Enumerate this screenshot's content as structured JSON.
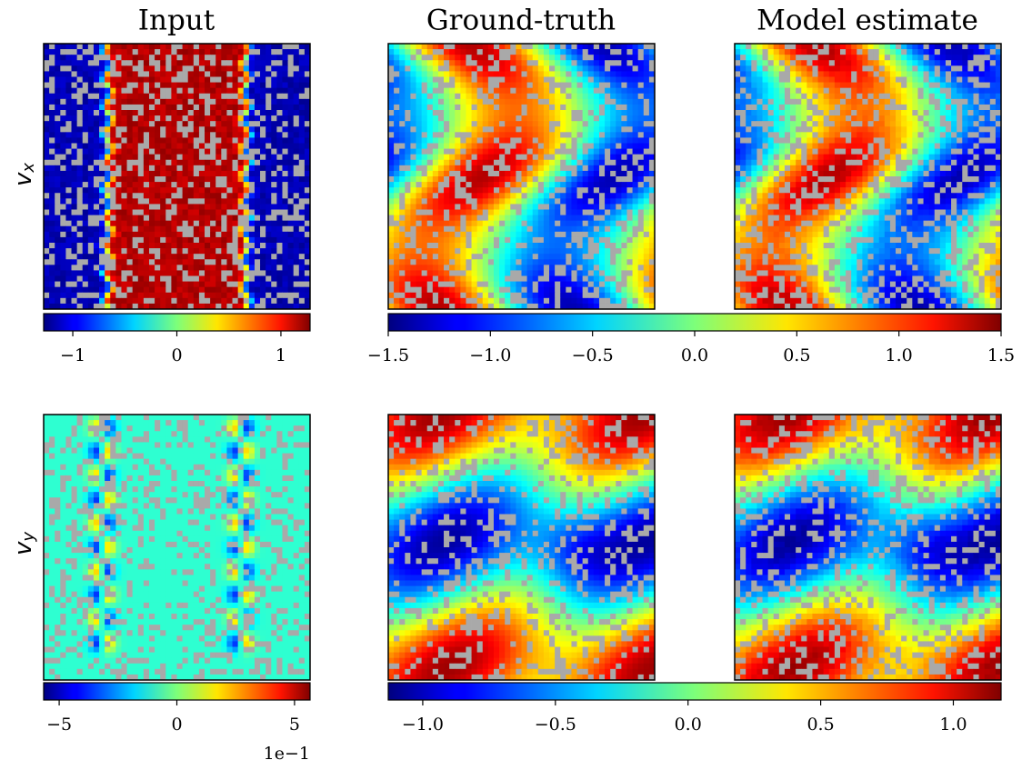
{
  "columns": [
    "Input",
    "Ground-truth",
    "Model estimate"
  ],
  "rows": [
    {
      "symbol": "v",
      "subscript": "x"
    },
    {
      "symbol": "v",
      "subscript": "y"
    }
  ],
  "chart_data": [
    {
      "type": "heatmap",
      "colormap": "jet",
      "clim": [
        -1.28,
        1.28
      ],
      "cticks": [
        {
          "value": -1,
          "label": "−1"
        },
        0,
        1
      ]
    },
    {
      "type": "heatmap",
      "colormap": "jet",
      "clim": [
        -1.5,
        1.5
      ],
      "cticks": [
        {
          "value": -1.5,
          "label": "−1.5"
        },
        {
          "value": -1.0,
          "label": "−1.0"
        },
        {
          "value": -0.5,
          "label": "−0.5"
        },
        {
          "value": 0,
          "label": "0.0"
        },
        0.5,
        {
          "value": 1.0,
          "label": "1.0"
        },
        1.5
      ]
    },
    {
      "type": "heatmap",
      "colormap": "jet",
      "clim": [
        -5.66,
        5.66
      ],
      "cticks": [
        {
          "value": -5,
          "label": "−5"
        },
        0,
        5
      ],
      "offset_label": "1e−1"
    },
    {
      "type": "heatmap",
      "colormap": "jet",
      "clim": [
        -1.13,
        1.18
      ],
      "cticks": [
        {
          "value": -1.0,
          "label": "−1.0"
        },
        {
          "value": -0.5,
          "label": "−0.5"
        },
        {
          "value": 0,
          "label": "0.0"
        },
        0.5,
        {
          "value": 1.0,
          "label": "1.0"
        }
      ]
    }
  ]
}
